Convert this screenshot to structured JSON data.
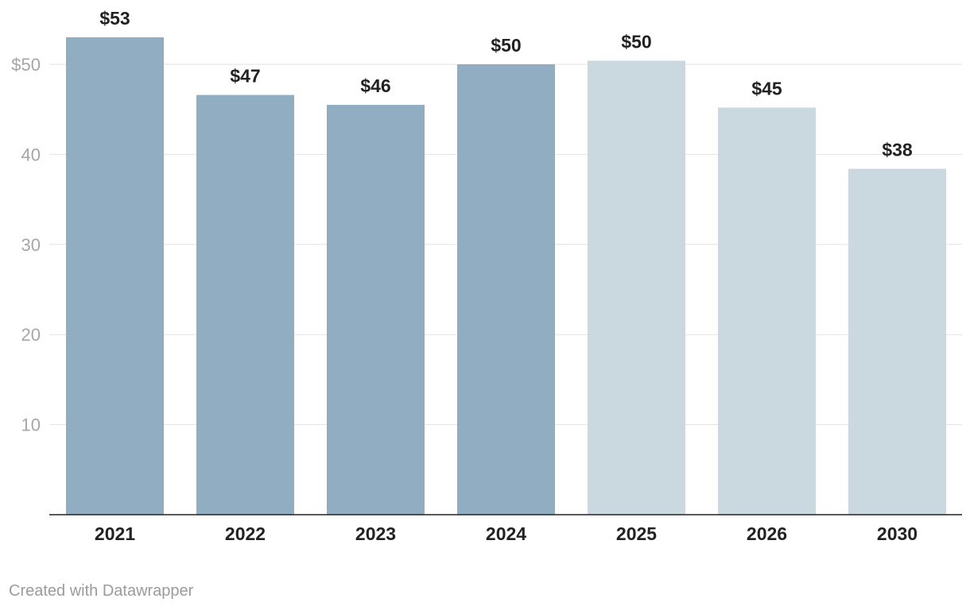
{
  "chart_data": {
    "type": "bar",
    "categories": [
      "2021",
      "2022",
      "2023",
      "2024",
      "2025",
      "2026",
      "2030"
    ],
    "values": [
      53,
      46.6,
      45.5,
      50,
      50.4,
      45.2,
      38.4
    ],
    "value_labels": [
      "$53",
      "$47",
      "$46",
      "$50",
      "$50",
      "$45",
      "$38"
    ],
    "bar_colors": [
      "#91adc1",
      "#91adc1",
      "#91adc1",
      "#91adc1",
      "#cad8e0",
      "#cad8e0",
      "#cad8e0"
    ],
    "y_ticks": [
      {
        "value": 10,
        "label": "10"
      },
      {
        "value": 20,
        "label": "20"
      },
      {
        "value": 30,
        "label": "30"
      },
      {
        "value": 40,
        "label": "40"
      },
      {
        "value": 50,
        "label": "$50"
      }
    ],
    "ylim": [
      0,
      50
    ],
    "grid": true,
    "title": "",
    "xlabel": "",
    "ylabel": ""
  },
  "footer": {
    "credit": "Created with Datawrapper"
  }
}
